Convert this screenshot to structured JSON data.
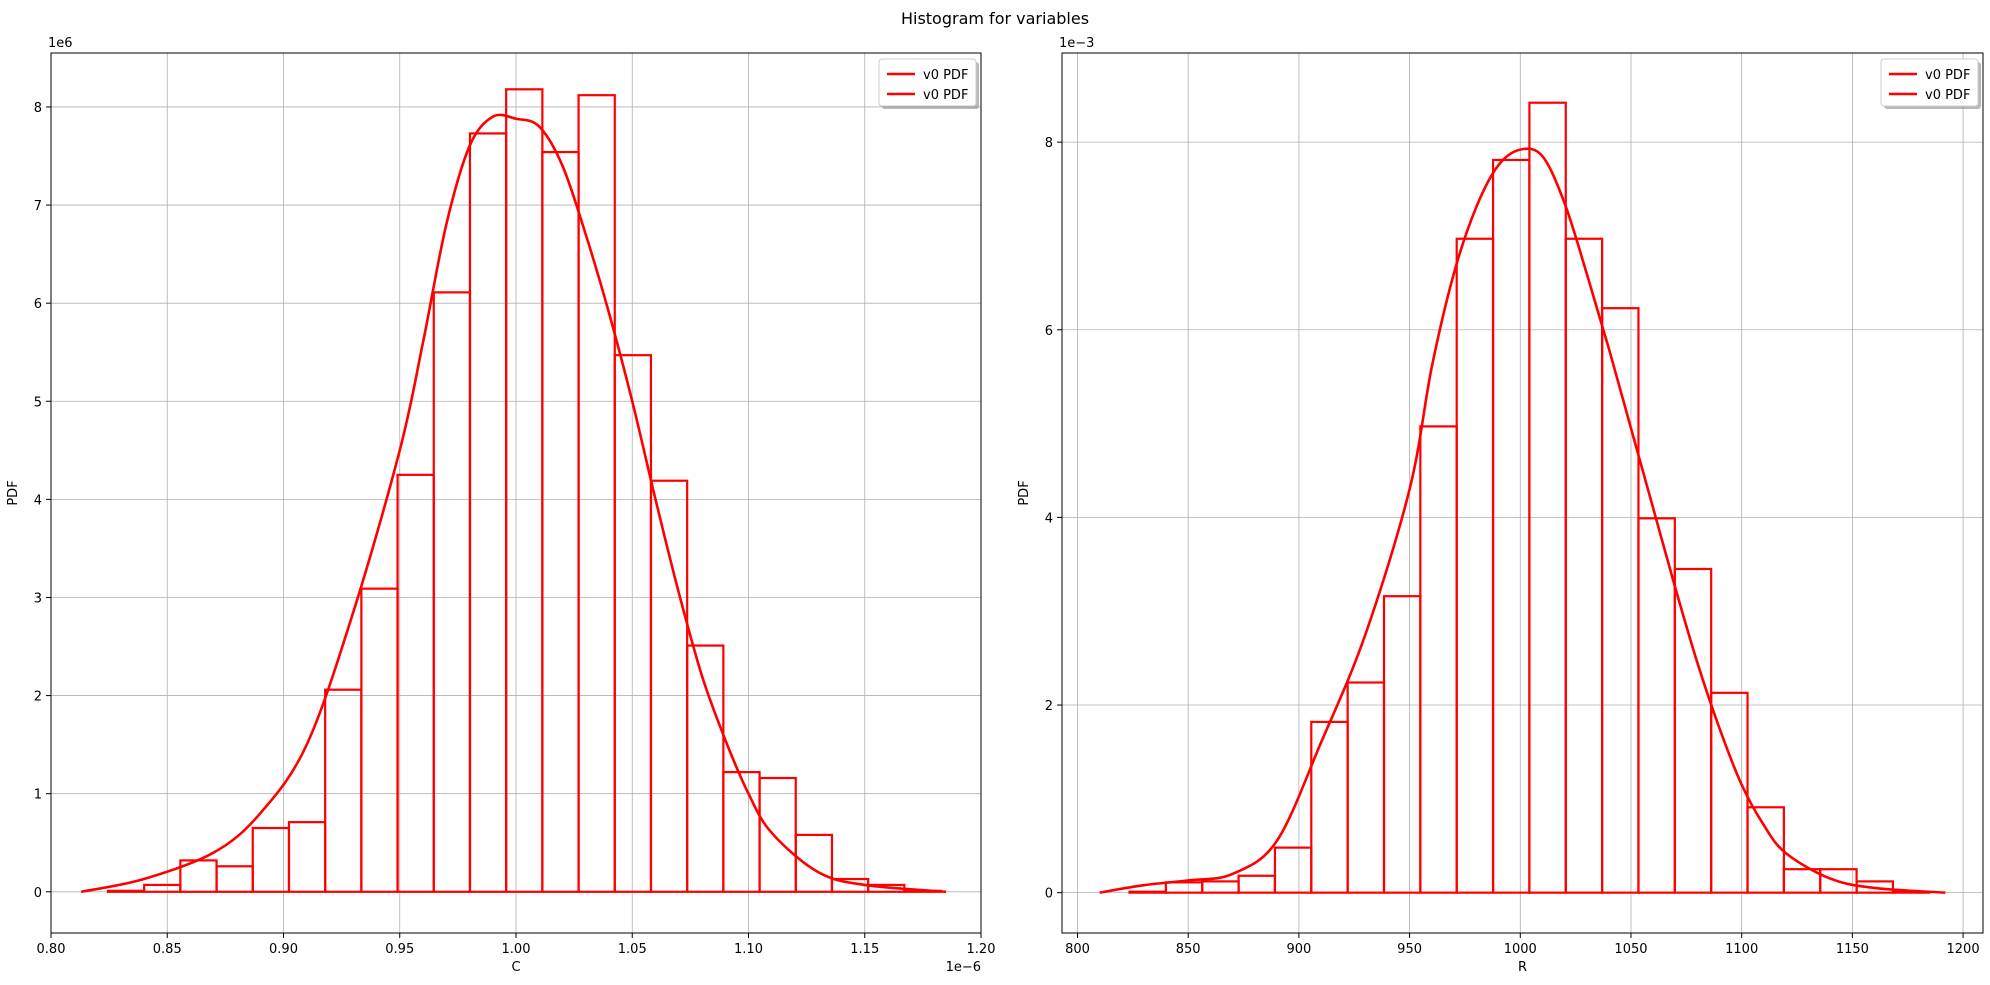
{
  "figure": {
    "suptitle": "Histogram for variables"
  },
  "chart_data": [
    {
      "type": "bar",
      "histtype": "step",
      "xlabel": "C",
      "ylabel": "PDF",
      "x_offset_text": "1e−6",
      "y_offset_text": "1e6",
      "x_scale": 1e-06,
      "y_scale": 1000000,
      "xlim": [
        0.8,
        1.2
      ],
      "ylim": [
        -0.42,
        8.55
      ],
      "xticks": [
        0.8,
        0.85,
        0.9,
        0.95,
        1.0,
        1.05,
        1.1,
        1.15,
        1.2
      ],
      "xtick_labels": [
        "0.80",
        "0.85",
        "0.90",
        "0.95",
        "1.00",
        "1.05",
        "1.10",
        "1.15",
        "1.20"
      ],
      "yticks": [
        0,
        1,
        2,
        3,
        4,
        5,
        6,
        7,
        8
      ],
      "ytick_labels": [
        "0",
        "1",
        "2",
        "3",
        "4",
        "5",
        "6",
        "7",
        "8"
      ],
      "grid": true,
      "legend": {
        "position": "top-right",
        "entries": [
          "v0 PDF",
          "v0 PDF"
        ]
      },
      "color": "#ff0000",
      "bin_start": 0.8245,
      "bin_width": 0.01557,
      "bin_values": [
        0.01,
        0.07,
        0.32,
        0.26,
        0.65,
        0.71,
        2.06,
        3.09,
        4.25,
        6.11,
        7.73,
        8.18,
        7.54,
        8.12,
        5.47,
        4.19,
        2.51,
        1.22,
        1.16,
        0.58,
        0.13,
        0.07,
        0.01
      ],
      "pdf_x": [
        0.813,
        0.84,
        0.87,
        0.89,
        0.91,
        0.93,
        0.95,
        0.96,
        0.97,
        0.98,
        0.99,
        1.0,
        1.01,
        1.02,
        1.03,
        1.04,
        1.05,
        1.06,
        1.07,
        1.08,
        1.09,
        1.1,
        1.11,
        1.13,
        1.15,
        1.185
      ],
      "pdf_y": [
        0.0,
        0.13,
        0.4,
        0.8,
        1.5,
        2.85,
        4.5,
        5.6,
        6.8,
        7.6,
        7.9,
        7.88,
        7.8,
        7.4,
        6.7,
        5.9,
        5.0,
        4.0,
        3.05,
        2.2,
        1.55,
        1.0,
        0.6,
        0.2,
        0.07,
        0.0
      ]
    },
    {
      "type": "bar",
      "histtype": "step",
      "xlabel": "R",
      "ylabel": "PDF",
      "y_offset_text": "1e−3",
      "y_scale": 0.001,
      "xlim": [
        793,
        1209
      ],
      "ylim": [
        -0.43,
        8.95
      ],
      "xticks": [
        800,
        850,
        900,
        950,
        1000,
        1050,
        1100,
        1150,
        1200
      ],
      "xtick_labels": [
        "800",
        "850",
        "900",
        "950",
        "1000",
        "1050",
        "1100",
        "1150",
        "1200"
      ],
      "yticks": [
        0,
        2,
        4,
        6,
        8
      ],
      "ytick_labels": [
        "0",
        "2",
        "4",
        "6",
        "8"
      ],
      "grid": true,
      "legend": {
        "position": "top-right",
        "entries": [
          "v0 PDF",
          "v0 PDF"
        ]
      },
      "color": "#ff0000",
      "bin_start": 823.5,
      "bin_width": 16.42,
      "bin_values": [
        0.01,
        0.11,
        0.12,
        0.18,
        0.48,
        1.82,
        2.24,
        3.16,
        4.97,
        6.97,
        7.81,
        8.42,
        6.97,
        6.23,
        3.99,
        3.45,
        2.13,
        0.91,
        0.25,
        0.25,
        0.12,
        0.01
      ],
      "pdf_x": [
        810,
        830,
        850,
        870,
        890,
        910,
        930,
        950,
        960,
        970,
        980,
        990,
        1000,
        1010,
        1020,
        1030,
        1040,
        1050,
        1060,
        1070,
        1080,
        1090,
        1100,
        1110,
        1120,
        1140,
        1160,
        1192
      ],
      "pdf_y": [
        0.0,
        0.08,
        0.13,
        0.2,
        0.55,
        1.6,
        2.75,
        4.3,
        5.6,
        6.6,
        7.3,
        7.75,
        7.92,
        7.85,
        7.35,
        6.6,
        5.8,
        4.95,
        4.1,
        3.25,
        2.45,
        1.75,
        1.15,
        0.72,
        0.42,
        0.15,
        0.05,
        0.0
      ]
    }
  ]
}
